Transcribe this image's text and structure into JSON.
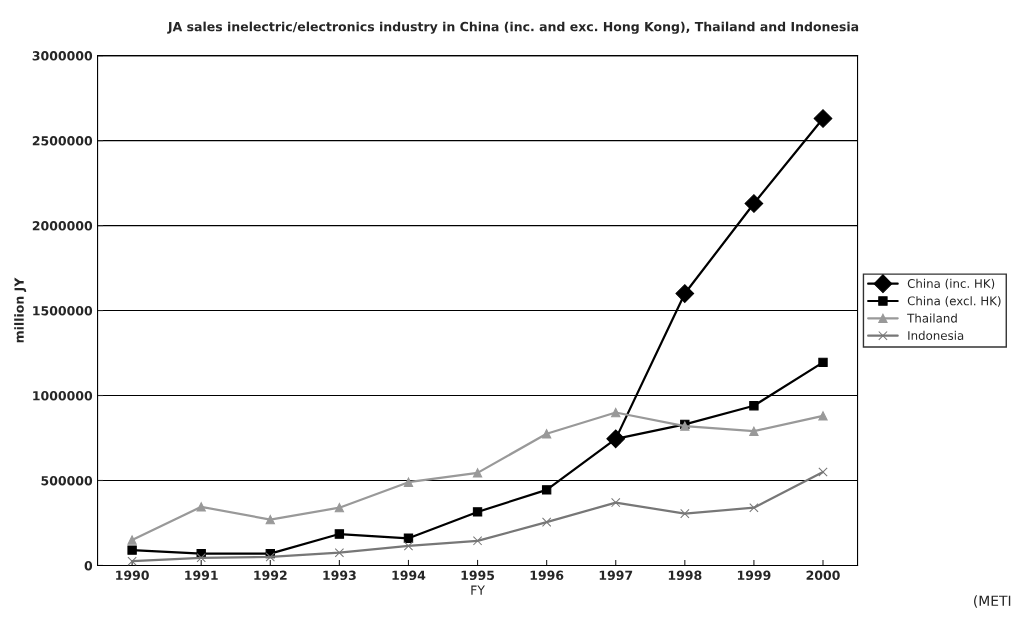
{
  "chart_data": {
    "type": "line",
    "title": "JA sales inelectric/electronics industry in China (inc. and exc. Hong Kong), Thailand and Indonesia",
    "xlabel": "FY",
    "ylabel": "million JY",
    "categories": [
      "1990",
      "1991",
      "1992",
      "1993",
      "1994",
      "1995",
      "1996",
      "1997",
      "1998",
      "1999",
      "2000"
    ],
    "series": [
      {
        "name": "China (inc. HK)",
        "color": "#000000",
        "marker": "diamond",
        "values": [
          null,
          null,
          null,
          null,
          null,
          null,
          null,
          745000,
          1600000,
          2130000,
          2630000
        ]
      },
      {
        "name": "China (excl. HK)",
        "color": "#000000",
        "marker": "square",
        "values": [
          90000,
          70000,
          70000,
          185000,
          160000,
          315000,
          445000,
          745000,
          830000,
          940000,
          1195000
        ]
      },
      {
        "name": "Thailand",
        "color": "#999999",
        "marker": "triangle",
        "values": [
          150000,
          345000,
          270000,
          340000,
          490000,
          545000,
          775000,
          900000,
          820000,
          790000,
          880000
        ]
      },
      {
        "name": "Indonesia",
        "color": "#777777",
        "marker": "cross",
        "values": [
          25000,
          45000,
          50000,
          75000,
          115000,
          145000,
          255000,
          370000,
          305000,
          340000,
          550000
        ]
      }
    ],
    "ylim": [
      0,
      3000000
    ],
    "yticks": [
      0,
      500000,
      1000000,
      1500000,
      2000000,
      2500000,
      3000000
    ],
    "grid": "y",
    "legend": "right",
    "annotations": [
      "(METI"
    ]
  }
}
